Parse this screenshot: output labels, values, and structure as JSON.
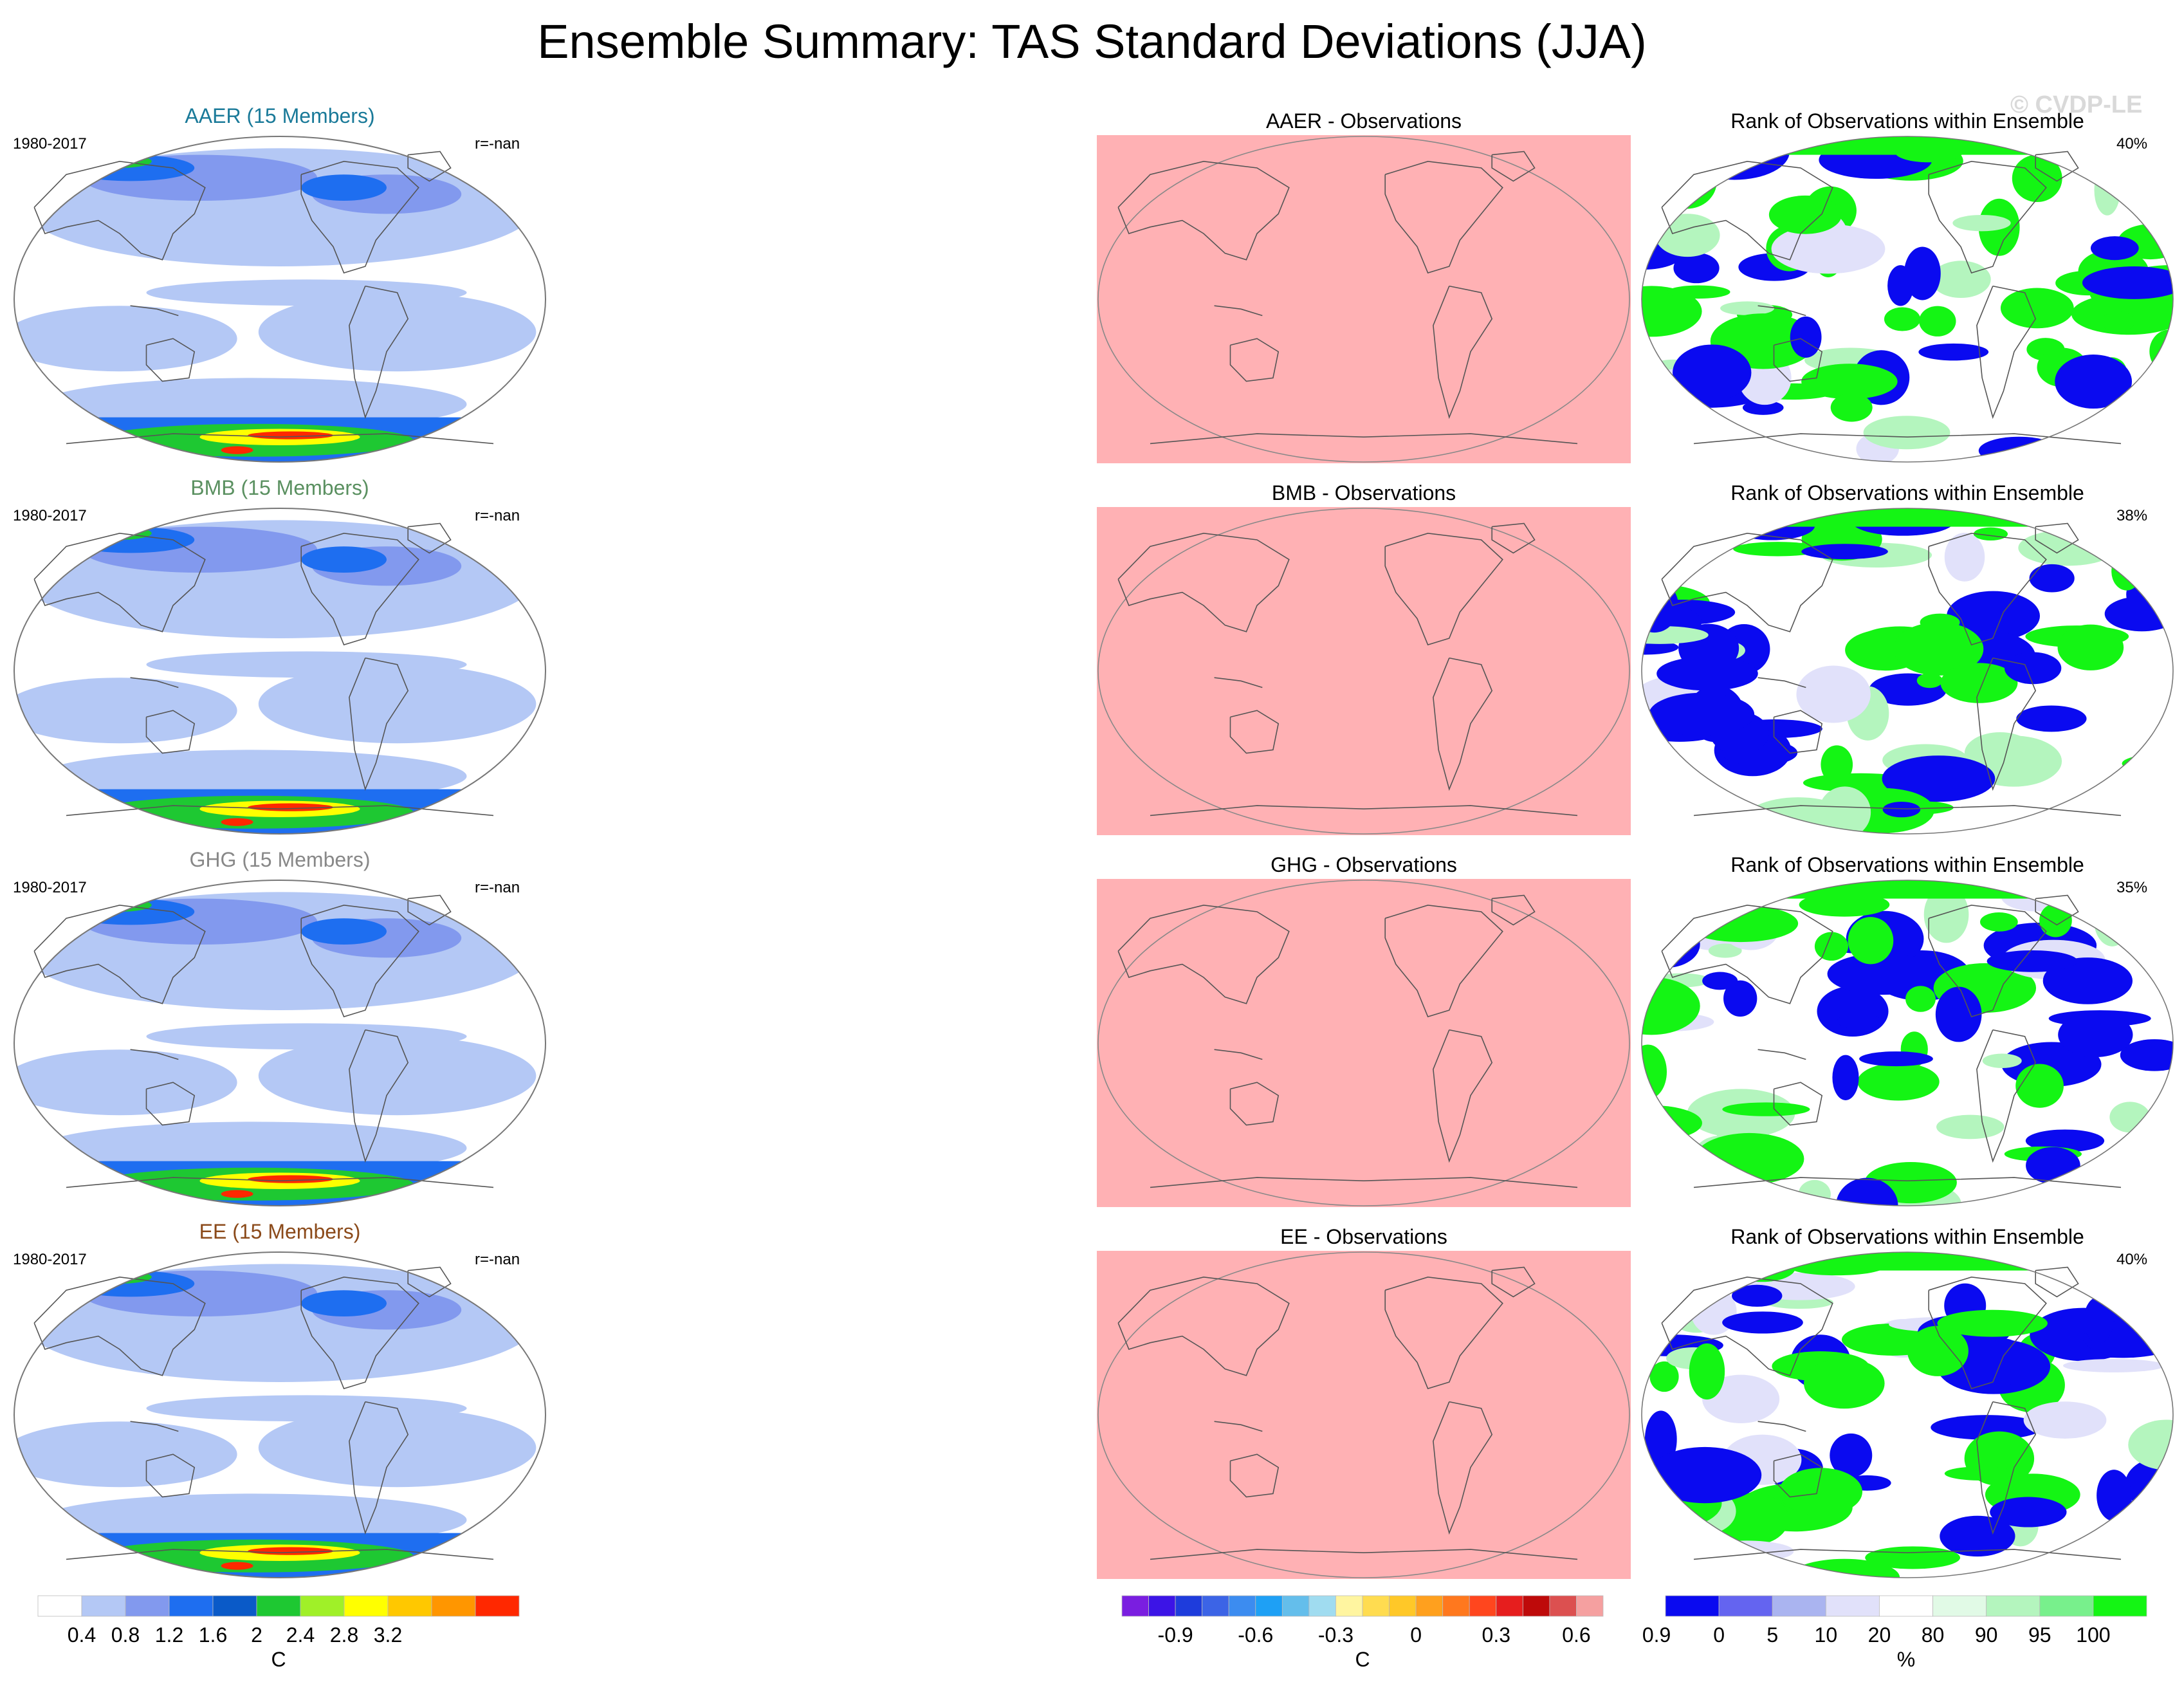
{
  "figure": {
    "title": "Ensemble Summary: TAS Standard Deviations (JJA)",
    "copyright": "© CVDP-LE"
  },
  "rows": [
    {
      "name": "AAER",
      "left_title": "AAER (15 Members)",
      "title_color": "#1a7a99",
      "period": "1980-2017",
      "corr": "r=-nan",
      "diff_title": "AAER - Observations",
      "rank_title": "Rank of Observations within Ensemble",
      "rank_pct": "40%"
    },
    {
      "name": "BMB",
      "left_title": "BMB (15 Members)",
      "title_color": "#5a9060",
      "period": "1980-2017",
      "corr": "r=-nan",
      "diff_title": "BMB - Observations",
      "rank_title": "Rank of Observations within Ensemble",
      "rank_pct": "38%"
    },
    {
      "name": "GHG",
      "left_title": "GHG (15 Members)",
      "title_color": "#888888",
      "period": "1980-2017",
      "corr": "r=-nan",
      "diff_title": "GHG - Observations",
      "rank_title": "Rank of Observations within Ensemble",
      "rank_pct": "35%"
    },
    {
      "name": "EE",
      "left_title": "EE (15 Members)",
      "title_color": "#8b4a1a",
      "period": "1980-2017",
      "corr": "r=-nan",
      "diff_title": "EE - Observations",
      "rank_title": "Rank of Observations within Ensemble",
      "rank_pct": "40%"
    }
  ],
  "colorbars": {
    "stddev": {
      "unit": "C",
      "labels": [
        "0.4",
        "0.8",
        "1.2",
        "1.6",
        "2",
        "2.4",
        "2.8",
        "3.2"
      ],
      "colors": [
        "#ffffff",
        "#b4c8f5",
        "#8299ee",
        "#1e6ef0",
        "#0a5ac8",
        "#1ec832",
        "#a0f028",
        "#ffff00",
        "#ffc800",
        "#ff9600",
        "#ff2800"
      ]
    },
    "diff": {
      "unit": "C",
      "labels": [
        "-0.9",
        "-0.6",
        "-0.3",
        "0",
        "0.3",
        "0.6",
        "0.9"
      ],
      "colors": [
        "#7a1ee0",
        "#3c14e6",
        "#1e3cdc",
        "#3c64e6",
        "#3c8cf0",
        "#1ea0f5",
        "#64beeb",
        "#a0dcf0",
        "#fff5a0",
        "#ffdc50",
        "#ffc828",
        "#ffa01e",
        "#ff781e",
        "#ff461e",
        "#e61e1e",
        "#be0a0a",
        "#dc5050",
        "#f5a0a0"
      ]
    },
    "rank": {
      "unit": "%",
      "labels": [
        "0",
        "5",
        "10",
        "20",
        "80",
        "90",
        "95",
        "100"
      ],
      "colors": [
        "#0a0af0",
        "#6464f0",
        "#aab4f0",
        "#e1e1fa",
        "#ffffff",
        "#e1fae6",
        "#b4f5be",
        "#78f08c",
        "#14f514"
      ]
    }
  }
}
